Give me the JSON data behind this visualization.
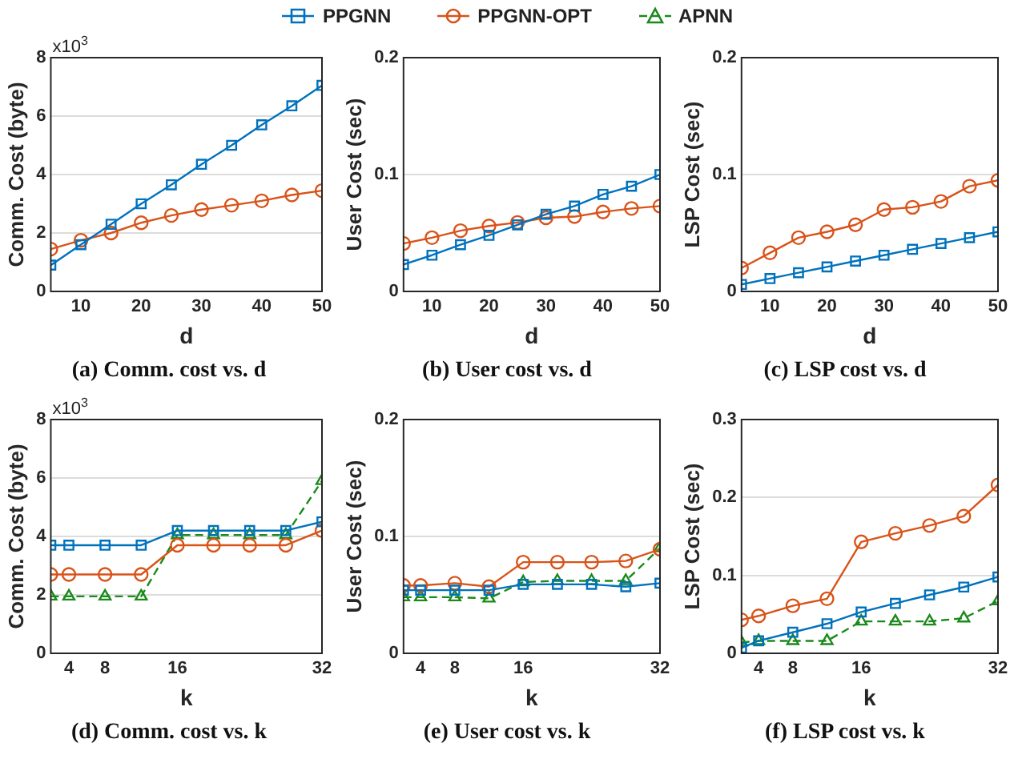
{
  "chart_data": [
    {
      "type": "line",
      "title": "(a) Comm. cost vs. d",
      "xlabel": "d",
      "ylabel": "Comm. Cost (byte)",
      "annotations": [
        "x10$^{3}$"
      ],
      "legend": "top",
      "x": [
        5,
        10,
        15,
        20,
        25,
        30,
        35,
        40,
        45,
        50
      ],
      "xlim": [
        5,
        50
      ],
      "xticks": [
        10,
        20,
        30,
        40,
        50
      ],
      "ylim": [
        0,
        8
      ],
      "yticks": [
        0,
        2,
        4,
        6,
        8
      ],
      "grid": "y",
      "series": [
        {
          "name": "PPGNN",
          "color": "#0072bd",
          "marker": "square",
          "line_style": "solid",
          "values": [
            0.9,
            1.6,
            2.3,
            3.0,
            3.65,
            4.35,
            5.0,
            5.7,
            6.35,
            7.05
          ]
        },
        {
          "name": "PPGNN-OPT",
          "color": "#d95319",
          "marker": "circle",
          "line_style": "solid",
          "values": [
            1.45,
            1.75,
            2.0,
            2.35,
            2.6,
            2.8,
            2.95,
            3.1,
            3.3,
            3.45
          ]
        }
      ]
    },
    {
      "type": "line",
      "title": "(b) User cost vs. d",
      "xlabel": "d",
      "ylabel": "User Cost (sec)",
      "x": [
        5,
        10,
        15,
        20,
        25,
        30,
        35,
        40,
        45,
        50
      ],
      "xlim": [
        5,
        50
      ],
      "xticks": [
        10,
        20,
        30,
        40,
        50
      ],
      "ylim": [
        0,
        0.2
      ],
      "yticks": [
        0,
        0.1,
        0.2
      ],
      "grid": "y",
      "series": [
        {
          "color": "#0072bd",
          "marker": "square",
          "line_style": "solid",
          "values": [
            0.023,
            0.031,
            0.04,
            0.048,
            0.057,
            0.066,
            0.073,
            0.083,
            0.09,
            0.1
          ]
        },
        {
          "color": "#d95319",
          "marker": "circle",
          "line_style": "solid",
          "values": [
            0.041,
            0.046,
            0.052,
            0.056,
            0.059,
            0.063,
            0.064,
            0.068,
            0.071,
            0.073
          ]
        }
      ]
    },
    {
      "type": "line",
      "title": "(c) LSP cost vs. d",
      "xlabel": "d",
      "ylabel": "LSP Cost (sec)",
      "x": [
        5,
        10,
        15,
        20,
        25,
        30,
        35,
        40,
        45,
        50
      ],
      "xlim": [
        5,
        50
      ],
      "xticks": [
        10,
        20,
        30,
        40,
        50
      ],
      "ylim": [
        0,
        0.2
      ],
      "yticks": [
        0,
        0.1,
        0.2
      ],
      "grid": "y",
      "series": [
        {
          "color": "#0072bd",
          "marker": "square",
          "line_style": "solid",
          "values": [
            0.006,
            0.011,
            0.016,
            0.021,
            0.026,
            0.031,
            0.036,
            0.041,
            0.046,
            0.051
          ]
        },
        {
          "color": "#d95319",
          "marker": "circle",
          "line_style": "solid",
          "values": [
            0.02,
            0.033,
            0.046,
            0.051,
            0.057,
            0.07,
            0.072,
            0.077,
            0.09,
            0.095
          ]
        }
      ]
    },
    {
      "type": "line",
      "title": "(d) Comm. cost vs. k",
      "xlabel": "k",
      "ylabel": "Comm. Cost (byte)",
      "annotations": [
        "x10$^{3}$"
      ],
      "legend": "top",
      "x": [
        2,
        4,
        8,
        12,
        16,
        20,
        24,
        28,
        32
      ],
      "xlim": [
        2,
        32
      ],
      "xticks": [
        4,
        8,
        16,
        32
      ],
      "ylim": [
        0,
        8
      ],
      "yticks": [
        0,
        2,
        4,
        6,
        8
      ],
      "grid": "y",
      "series": [
        {
          "color": "#0072bd",
          "marker": "square",
          "line_style": "solid",
          "values": [
            3.7,
            3.7,
            3.7,
            3.7,
            4.2,
            4.2,
            4.2,
            4.2,
            4.5
          ]
        },
        {
          "color": "#d95319",
          "marker": "circle",
          "line_style": "solid",
          "values": [
            2.7,
            2.7,
            2.7,
            2.7,
            3.7,
            3.7,
            3.7,
            3.7,
            4.2
          ]
        },
        {
          "name": "APNN",
          "color": "#1a8a1a",
          "marker": "triangle",
          "line_style": "dashed",
          "values": [
            1.95,
            1.95,
            1.95,
            1.95,
            4.05,
            4.05,
            4.05,
            4.05,
            5.9
          ]
        }
      ]
    },
    {
      "type": "line",
      "title": "(e) User cost vs. k",
      "xlabel": "k",
      "ylabel": "User Cost (sec)",
      "x": [
        2,
        4,
        8,
        12,
        16,
        20,
        24,
        28,
        32
      ],
      "xlim": [
        2,
        32
      ],
      "xticks": [
        4,
        8,
        16,
        32
      ],
      "ylim": [
        0,
        0.2
      ],
      "yticks": [
        0,
        0.1,
        0.2
      ],
      "grid": "y",
      "series": [
        {
          "color": "#0072bd",
          "marker": "square",
          "line_style": "solid",
          "values": [
            0.054,
            0.054,
            0.054,
            0.054,
            0.059,
            0.059,
            0.059,
            0.057,
            0.06
          ]
        },
        {
          "color": "#d95319",
          "marker": "circle",
          "line_style": "solid",
          "values": [
            0.058,
            0.058,
            0.06,
            0.057,
            0.078,
            0.078,
            0.078,
            0.079,
            0.089
          ]
        },
        {
          "color": "#1a8a1a",
          "marker": "triangle",
          "line_style": "dashed",
          "values": [
            0.048,
            0.048,
            0.048,
            0.047,
            0.061,
            0.062,
            0.062,
            0.062,
            0.09
          ]
        }
      ]
    },
    {
      "type": "line",
      "title": "(f) LSP cost vs. k",
      "xlabel": "k",
      "ylabel": "LSP Cost (sec)",
      "x": [
        2,
        4,
        8,
        12,
        16,
        20,
        24,
        28,
        32
      ],
      "xlim": [
        2,
        32
      ],
      "xticks": [
        4,
        8,
        16,
        32
      ],
      "ylim": [
        0,
        0.3
      ],
      "yticks": [
        0,
        0.1,
        0.2,
        0.3
      ],
      "grid": "y",
      "series": [
        {
          "color": "#0072bd",
          "marker": "square",
          "line_style": "solid",
          "values": [
            0.007,
            0.016,
            0.027,
            0.038,
            0.053,
            0.064,
            0.075,
            0.085,
            0.098
          ]
        },
        {
          "color": "#d95319",
          "marker": "circle",
          "line_style": "solid",
          "values": [
            0.043,
            0.048,
            0.061,
            0.07,
            0.143,
            0.154,
            0.164,
            0.176,
            0.216
          ]
        },
        {
          "color": "#1a8a1a",
          "marker": "triangle",
          "line_style": "dashed",
          "values": [
            0.014,
            0.016,
            0.016,
            0.016,
            0.041,
            0.041,
            0.041,
            0.045,
            0.067
          ]
        }
      ]
    }
  ]
}
